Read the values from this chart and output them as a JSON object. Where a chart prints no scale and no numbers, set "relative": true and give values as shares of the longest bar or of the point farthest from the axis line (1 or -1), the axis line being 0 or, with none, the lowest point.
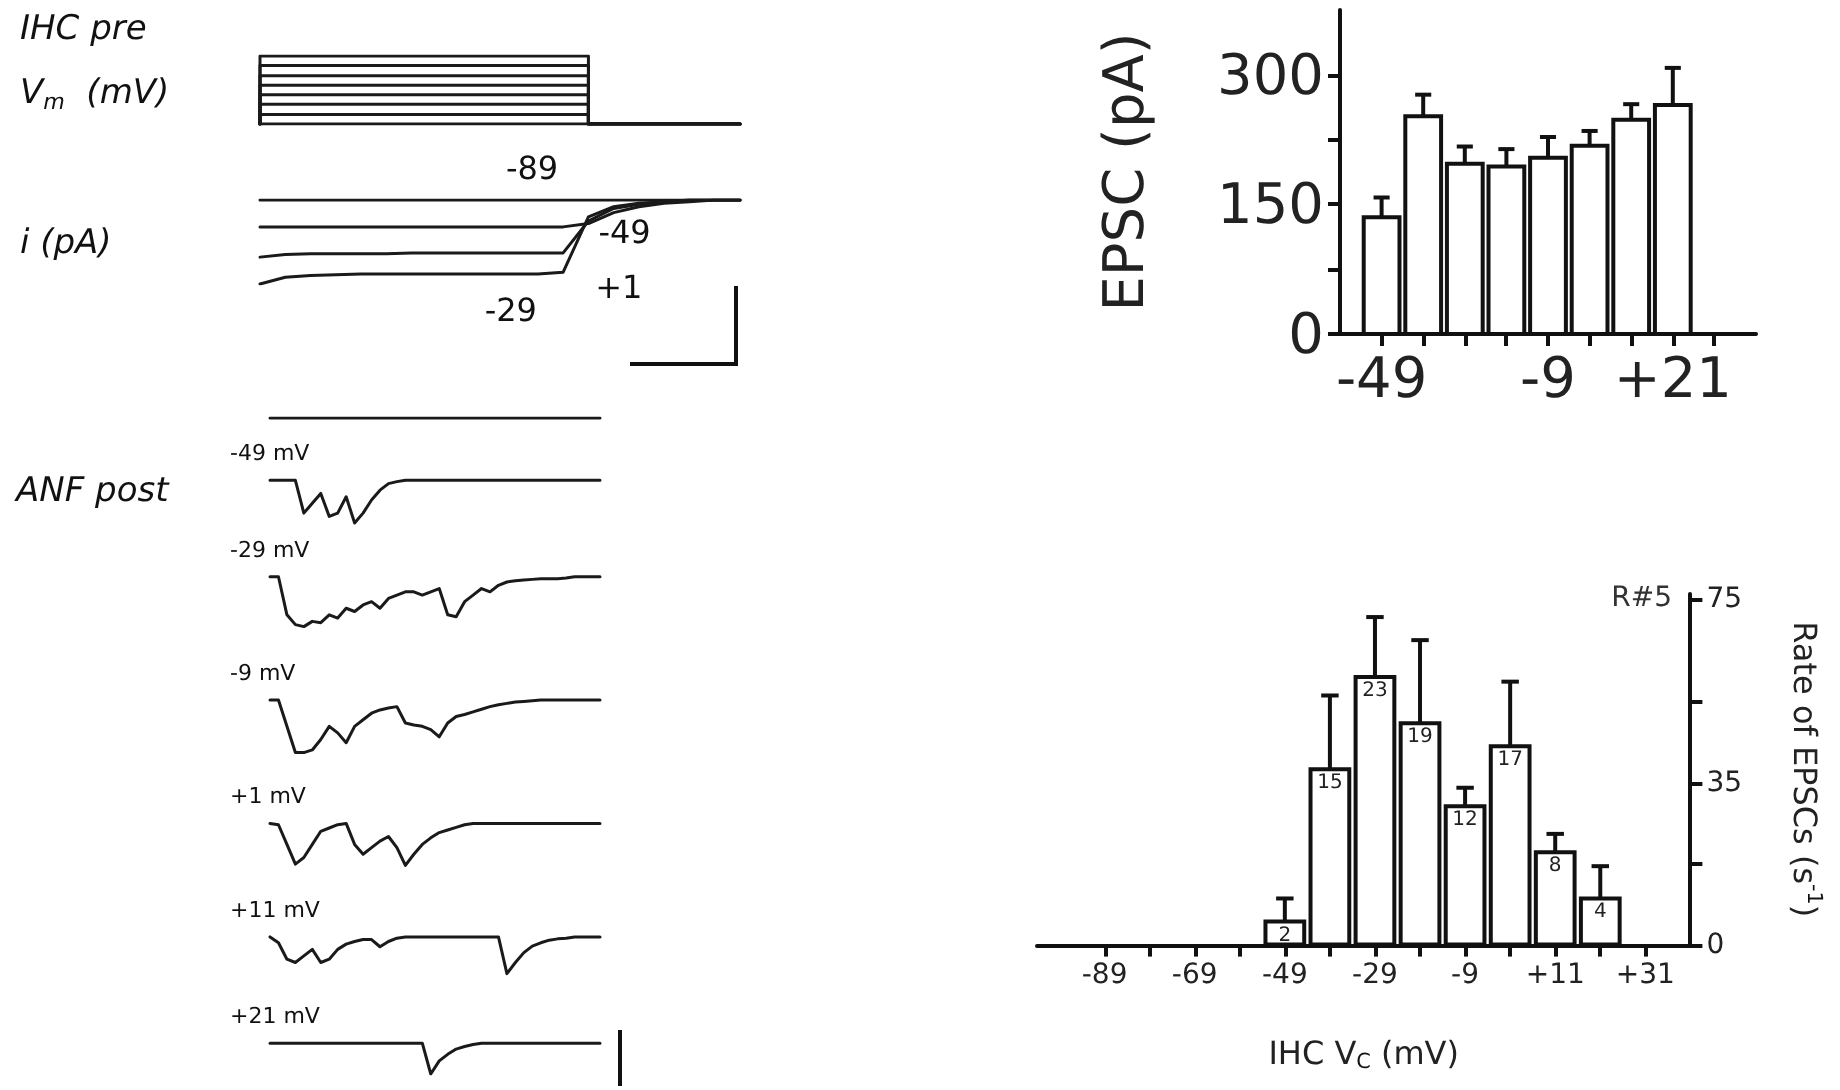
{
  "chart_data": [
    {
      "type": "step",
      "title": "IHC pre",
      "ylabel": "V$_{m}$  (mV)",
      "relative": true,
      "categories": [
        null,
        null,
        null,
        null,
        null,
        null,
        null,
        null,
        null,
        null,
        null,
        null,
        null,
        null,
        null,
        null,
        null,
        null,
        null,
        null
      ],
      "series": [
        {
          "color": "#1a1a1a",
          "values": [
            0,
            1,
            1,
            1,
            1,
            1,
            1,
            1,
            1,
            1,
            1,
            1,
            1,
            1,
            0,
            0,
            0,
            0,
            0,
            0
          ]
        },
        {
          "color": "#1a1a1a",
          "values": [
            0,
            0.86,
            0.86,
            0.86,
            0.86,
            0.86,
            0.86,
            0.86,
            0.86,
            0.86,
            0.86,
            0.86,
            0.86,
            0.86,
            0,
            0,
            0,
            0,
            0,
            0
          ]
        },
        {
          "color": "#1a1a1a",
          "values": [
            0,
            0.71,
            0.71,
            0.71,
            0.71,
            0.71,
            0.71,
            0.71,
            0.71,
            0.71,
            0.71,
            0.71,
            0.71,
            0.71,
            0,
            0,
            0,
            0,
            0,
            0
          ]
        },
        {
          "color": "#1a1a1a",
          "values": [
            0,
            0.57,
            0.57,
            0.57,
            0.57,
            0.57,
            0.57,
            0.57,
            0.57,
            0.57,
            0.57,
            0.57,
            0.57,
            0.57,
            0,
            0,
            0,
            0,
            0,
            0
          ]
        },
        {
          "color": "#1a1a1a",
          "values": [
            0,
            0.43,
            0.43,
            0.43,
            0.43,
            0.43,
            0.43,
            0.43,
            0.43,
            0.43,
            0.43,
            0.43,
            0.43,
            0.43,
            0,
            0,
            0,
            0,
            0,
            0
          ]
        },
        {
          "color": "#1a1a1a",
          "values": [
            0,
            0.29,
            0.29,
            0.29,
            0.29,
            0.29,
            0.29,
            0.29,
            0.29,
            0.29,
            0.29,
            0.29,
            0.29,
            0.29,
            0,
            0,
            0,
            0,
            0,
            0
          ]
        },
        {
          "color": "#1a1a1a",
          "values": [
            0,
            0.14,
            0.14,
            0.14,
            0.14,
            0.14,
            0.14,
            0.14,
            0.14,
            0.14,
            0.14,
            0.14,
            0.14,
            0.14,
            0,
            0,
            0,
            0,
            0,
            0
          ]
        },
        {
          "color": "#1a1a1a",
          "values": [
            0,
            0,
            0,
            0,
            0,
            0,
            0,
            0,
            0,
            0,
            0,
            0,
            0,
            0,
            0,
            0,
            0,
            0,
            0,
            0
          ]
        }
      ]
    },
    {
      "type": "line",
      "ylabel": "i (pA)",
      "relative": true,
      "categories": [
        null,
        null,
        null,
        null,
        null,
        null,
        null,
        null,
        null,
        null,
        null,
        null,
        null,
        null,
        null,
        null,
        null,
        null,
        null,
        null
      ],
      "series": [
        {
          "name": "-89",
          "color": "#1a1a1a",
          "values": [
            1,
            1,
            1,
            1,
            1,
            1,
            1,
            1,
            1,
            1,
            1,
            1,
            1,
            1,
            1,
            1,
            1,
            1,
            1,
            1
          ]
        },
        {
          "name": "-49",
          "color": "#1a1a1a",
          "values": [
            0.68,
            0.68,
            0.68,
            0.68,
            0.68,
            0.68,
            0.68,
            0.68,
            0.68,
            0.68,
            0.68,
            0.68,
            0.68,
            0.72,
            0.85,
            0.92,
            0.96,
            0.98,
            1,
            1
          ]
        },
        {
          "name": "+1",
          "color": "#1a1a1a",
          "values": [
            0.32,
            0.35,
            0.36,
            0.36,
            0.36,
            0.36,
            0.37,
            0.37,
            0.37,
            0.37,
            0.37,
            0.37,
            0.37,
            0.75,
            0.9,
            0.95,
            0.98,
            1,
            1,
            1
          ]
        },
        {
          "name": "-29",
          "color": "#1a1a1a",
          "values": [
            0,
            0.08,
            0.1,
            0.11,
            0.12,
            0.12,
            0.12,
            0.12,
            0.12,
            0.12,
            0.12,
            0.12,
            0.14,
            0.8,
            0.92,
            0.96,
            0.98,
            1,
            1,
            1
          ]
        }
      ]
    },
    {
      "type": "line",
      "ylabel": "ANF post",
      "relative": true,
      "categories": [
        null,
        null,
        null,
        null,
        null,
        null,
        null,
        null,
        null,
        null,
        null,
        null,
        null,
        null,
        null,
        null,
        null,
        null,
        null,
        null,
        null,
        null,
        null,
        null,
        null,
        null,
        null,
        null,
        null,
        null,
        null,
        null,
        null,
        null,
        null,
        null,
        null,
        null,
        null,
        null
      ],
      "series": [
        {
          "color": "#1a1a1a",
          "values": [
            1,
            1,
            1,
            1,
            1,
            1,
            1,
            1,
            1,
            1,
            1,
            1,
            1,
            1,
            1,
            1,
            1,
            1,
            1,
            1,
            1,
            1,
            1,
            1,
            1,
            1,
            1,
            1,
            1,
            1,
            1,
            1,
            1,
            1,
            1,
            1,
            1,
            1,
            1,
            1
          ]
        },
        {
          "name": "-49 mV",
          "color": "#1a1a1a",
          "values": [
            0.905,
            0.905,
            0.905,
            0.905,
            0.855,
            0.87,
            0.885,
            0.85,
            0.855,
            0.88,
            0.84,
            0.855,
            0.875,
            0.89,
            0.9,
            0.903,
            0.905,
            0.905,
            0.905,
            0.905,
            0.905,
            0.905,
            0.905,
            0.905,
            0.905,
            0.905,
            0.905,
            0.905,
            0.905,
            0.905,
            0.905,
            0.905,
            0.905,
            0.905,
            0.905,
            0.905,
            0.905,
            0.905,
            0.905,
            0.905
          ]
        },
        {
          "name": "-29 mV",
          "color": "#1a1a1a",
          "values": [
            0.758,
            0.758,
            0.7,
            0.685,
            0.682,
            0.69,
            0.688,
            0.7,
            0.695,
            0.71,
            0.705,
            0.715,
            0.72,
            0.71,
            0.725,
            0.73,
            0.735,
            0.735,
            0.73,
            0.735,
            0.74,
            0.7,
            0.697,
            0.72,
            0.73,
            0.74,
            0.735,
            0.745,
            0.75,
            0.752,
            0.753,
            0.754,
            0.755,
            0.755,
            0.755,
            0.756,
            0.758,
            0.758,
            0.758,
            0.758
          ]
        },
        {
          "name": "-9 mV",
          "color": "#1a1a1a",
          "values": [
            0.57,
            0.57,
            0.53,
            0.49,
            0.49,
            0.494,
            0.51,
            0.53,
            0.52,
            0.505,
            0.53,
            0.54,
            0.55,
            0.555,
            0.558,
            0.56,
            0.535,
            0.532,
            0.53,
            0.525,
            0.514,
            0.535,
            0.545,
            0.548,
            0.552,
            0.556,
            0.56,
            0.563,
            0.565,
            0.567,
            0.568,
            0.569,
            0.57,
            0.57,
            0.57,
            0.57,
            0.57,
            0.57,
            0.57,
            0.57
          ]
        },
        {
          "name": "+1 mV",
          "color": "#1a1a1a",
          "values": [
            0.382,
            0.38,
            0.35,
            0.32,
            0.33,
            0.35,
            0.37,
            0.375,
            0.38,
            0.382,
            0.35,
            0.335,
            0.345,
            0.355,
            0.362,
            0.345,
            0.318,
            0.335,
            0.35,
            0.36,
            0.368,
            0.372,
            0.376,
            0.38,
            0.382,
            0.382,
            0.382,
            0.382,
            0.382,
            0.382,
            0.382,
            0.382,
            0.382,
            0.382,
            0.382,
            0.382,
            0.382,
            0.382,
            0.382,
            0.382
          ]
        },
        {
          "name": "+11 mV",
          "color": "#1a1a1a",
          "values": [
            0.209,
            0.2,
            0.175,
            0.17,
            0.18,
            0.19,
            0.17,
            0.175,
            0.19,
            0.198,
            0.202,
            0.205,
            0.205,
            0.194,
            0.202,
            0.207,
            0.209,
            0.209,
            0.209,
            0.209,
            0.209,
            0.209,
            0.209,
            0.209,
            0.209,
            0.209,
            0.209,
            0.209,
            0.153,
            0.17,
            0.185,
            0.195,
            0.2,
            0.204,
            0.206,
            0.207,
            0.209,
            0.209,
            0.209,
            0.209
          ]
        },
        {
          "name": "+21 mV",
          "color": "#1a1a1a",
          "values": [
            0.047,
            0.047,
            0.047,
            0.047,
            0.047,
            0.047,
            0.047,
            0.047,
            0.047,
            0.047,
            0.047,
            0.047,
            0.047,
            0.047,
            0.047,
            0.047,
            0.047,
            0.047,
            0.047,
            0,
            0.02,
            0.03,
            0.038,
            0.042,
            0.045,
            0.047,
            0.047,
            0.047,
            0.047,
            0.047,
            0.047,
            0.047,
            0.047,
            0.047,
            0.047,
            0.047,
            0.047,
            0.047,
            0.047,
            0.047
          ]
        }
      ]
    },
    {
      "type": "bar",
      "ylabel": "EPSC (pA)",
      "categories": [
        "-49",
        null,
        null,
        null,
        "-9",
        null,
        null,
        "+21",
        null
      ],
      "values": [
        135,
        252,
        197,
        194,
        204,
        218,
        248,
        265,
        null
      ],
      "errors": [
        [
          135,
          158
        ],
        [
          252,
          277
        ],
        [
          197,
          217
        ],
        [
          194,
          214
        ],
        [
          204,
          228
        ],
        [
          218,
          235
        ],
        [
          248,
          266
        ],
        [
          265,
          308
        ],
        null
      ],
      "color": "#ffffff",
      "ylim": [
        0,
        375
      ],
      "yticks": [
        0,
        {
          "value": 75,
          "label": null
        },
        150,
        {
          "value": 225,
          "label": null
        },
        300
      ]
    },
    {
      "type": "bar",
      "xlabel": "IHC V$_{C}$ (mV)",
      "y2label": "Rate of EPSCs (s$^{-1}$)",
      "annotations": [
        "R#5",
        "2",
        "15",
        "23",
        "19",
        "12",
        "17",
        "8",
        "4"
      ],
      "x": [
        -49,
        -39,
        -29,
        -19,
        -9,
        1,
        11,
        21
      ],
      "series": [
        {
          "color": "#ffffff",
          "axis": "y2",
          "values": [
            5,
            38,
            58,
            48,
            30,
            43,
            20,
            10
          ],
          "errors": [
            [
              5,
              10
            ],
            [
              38,
              54
            ],
            [
              58,
              71
            ],
            [
              48,
              66
            ],
            [
              30,
              34
            ],
            [
              43,
              57
            ],
            [
              20,
              24
            ],
            [
              10,
              17
            ]
          ]
        }
      ],
      "xlim": [
        -104,
        41
      ],
      "xticks": [
        -89,
        {
          "value": -79,
          "label": null
        },
        -69,
        {
          "value": -59,
          "label": null
        },
        -49,
        {
          "value": -39,
          "label": null
        },
        -29,
        {
          "value": -19,
          "label": null
        },
        -9,
        {
          "value": 1,
          "label": null
        },
        {
          "value": 11,
          "label": "+11"
        },
        {
          "value": 21,
          "label": null
        },
        {
          "value": 31,
          "label": "+31"
        }
      ],
      "y2lim": [
        0,
        76
      ],
      "y2ticks": [
        0,
        {
          "value": 17.5,
          "label": null
        },
        35,
        {
          "value": 52.5,
          "label": null
        },
        75
      ]
    }
  ]
}
